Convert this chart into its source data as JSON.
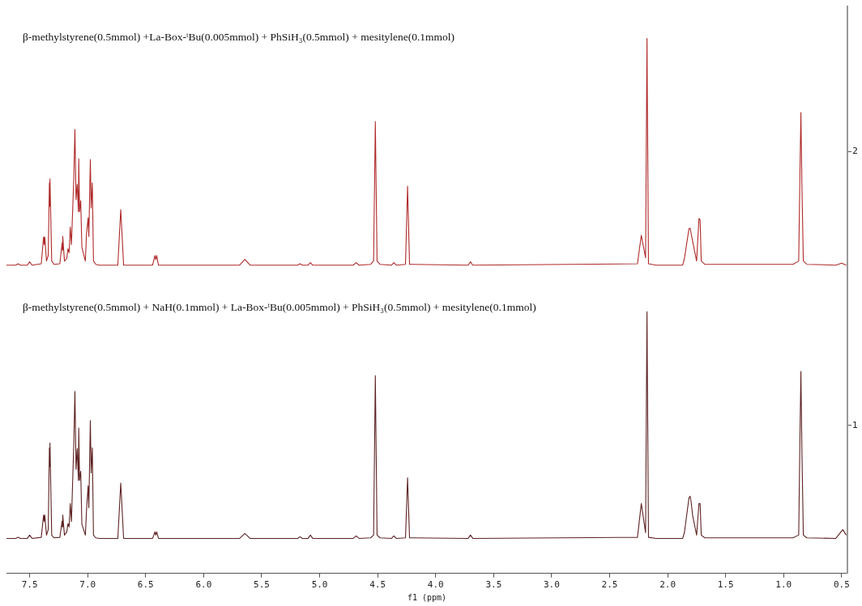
{
  "chart_data": {
    "type": "line",
    "xlabel": "f1 (ppm)",
    "annotations": [
      "β-methylstyrene(0.5mmol) +La-Box-ᵗBu(0.005mmol) + PhSiH₃(0.5mmol) + mesitylene(0.1mmol)",
      "β-methylstyrene(0.5mmol) + NaH(0.1mmol) + La-Box-ᵗBu(0.005mmol) + PhSiH₃(0.5mmol) + mesitylene(0.1mmol)"
    ],
    "xlim": [
      7.7,
      0.45
    ],
    "xticks": [
      7.5,
      {
        "value": 7,
        "label": "7.0"
      },
      6.5,
      {
        "value": 6,
        "label": "6.0"
      },
      5.5,
      {
        "value": 5,
        "label": "5.0"
      },
      4.5,
      {
        "value": 4,
        "label": "4.0"
      },
      3.5,
      {
        "value": 3,
        "label": "3.0"
      },
      2.5,
      {
        "value": 2,
        "label": "2.0"
      },
      1.5,
      {
        "value": 1,
        "label": "1.0"
      },
      0.5
    ],
    "ylim": [
      0.46,
      2.53
    ],
    "yticks": [
      1,
      2
    ],
    "marker": "none",
    "legend": false,
    "series": [
      {
        "color": "#b02a2a",
        "x": [
          7.7,
          7.62,
          7.6,
          7.58,
          7.52,
          7.5,
          7.48,
          7.4,
          7.38,
          7.375,
          7.37,
          7.355,
          7.34,
          7.33,
          7.328,
          7.325,
          7.31,
          7.29,
          7.24,
          7.22,
          7.218,
          7.215,
          7.2,
          7.18,
          7.17,
          7.16,
          7.15,
          7.14,
          7.12,
          7.11,
          7.1,
          7.09,
          7.08,
          7.077,
          7.07,
          7.06,
          7.05,
          7.02,
          7.01,
          6.996,
          6.99,
          6.977,
          6.97,
          6.96,
          6.95,
          6.93,
          6.9,
          6.74,
          6.715,
          6.69,
          6.44,
          6.42,
          6.413,
          6.405,
          6.39,
          5.69,
          5.645,
          5.6,
          5.19,
          5.17,
          5.15,
          5.1,
          5.08,
          5.06,
          4.71,
          4.685,
          4.66,
          4.56,
          4.535,
          4.52,
          4.505,
          4.48,
          4.38,
          4.36,
          4.34,
          4.26,
          4.242,
          4.225,
          3.72,
          3.7,
          3.68,
          2.26,
          2.227,
          2.19,
          2.178,
          2.165,
          2.1,
          1.87,
          1.855,
          1.816,
          1.806,
          1.797,
          1.785,
          1.75,
          1.73,
          1.72,
          1.71,
          1.68,
          0.92,
          0.87,
          0.86,
          0.851,
          0.842,
          0.83,
          0.8,
          0.55,
          0.5,
          0.46
        ],
        "values": [
          1.585,
          1.585,
          1.59,
          1.585,
          1.585,
          1.597,
          1.585,
          1.59,
          1.688,
          1.66,
          1.688,
          1.6,
          1.62,
          1.885,
          1.8,
          1.9,
          1.6,
          1.588,
          1.59,
          1.667,
          1.64,
          1.69,
          1.6,
          1.61,
          1.645,
          1.63,
          1.724,
          1.66,
          1.897,
          2.08,
          1.824,
          1.88,
          1.78,
          1.973,
          1.78,
          1.82,
          1.65,
          1.6,
          1.7,
          1.758,
          1.69,
          1.97,
          1.794,
          1.885,
          1.6,
          1.588,
          1.585,
          1.585,
          1.788,
          1.585,
          1.585,
          1.62,
          1.605,
          1.62,
          1.585,
          1.585,
          1.606,
          1.585,
          1.585,
          1.59,
          1.585,
          1.585,
          1.594,
          1.585,
          1.585,
          1.594,
          1.585,
          1.588,
          1.6,
          2.109,
          1.6,
          1.588,
          1.585,
          1.594,
          1.585,
          1.588,
          1.873,
          1.588,
          1.585,
          1.597,
          1.585,
          1.59,
          1.694,
          1.612,
          2.412,
          1.59,
          1.585,
          1.585,
          1.61,
          1.718,
          1.72,
          1.7,
          1.673,
          1.6,
          1.755,
          1.75,
          1.6,
          1.588,
          1.588,
          1.6,
          1.9,
          2.142,
          1.87,
          1.6,
          1.588,
          1.585,
          1.592,
          1.585
        ]
      },
      {
        "color": "#5e2222",
        "x": [
          7.7,
          7.62,
          7.6,
          7.58,
          7.52,
          7.5,
          7.48,
          7.4,
          7.38,
          7.375,
          7.37,
          7.355,
          7.34,
          7.33,
          7.328,
          7.325,
          7.31,
          7.29,
          7.24,
          7.22,
          7.218,
          7.215,
          7.2,
          7.18,
          7.17,
          7.16,
          7.15,
          7.14,
          7.12,
          7.11,
          7.1,
          7.09,
          7.08,
          7.077,
          7.07,
          7.06,
          7.05,
          7.02,
          7.01,
          6.996,
          6.99,
          6.977,
          6.97,
          6.96,
          6.95,
          6.93,
          6.9,
          6.74,
          6.715,
          6.69,
          6.44,
          6.42,
          6.413,
          6.405,
          6.39,
          5.69,
          5.645,
          5.6,
          5.19,
          5.17,
          5.15,
          5.1,
          5.08,
          5.06,
          4.71,
          4.685,
          4.66,
          4.56,
          4.535,
          4.52,
          4.505,
          4.48,
          4.38,
          4.36,
          4.34,
          4.26,
          4.242,
          4.225,
          3.72,
          3.7,
          3.68,
          2.26,
          2.227,
          2.19,
          2.178,
          2.165,
          2.1,
          1.87,
          1.855,
          1.816,
          1.806,
          1.797,
          1.785,
          1.75,
          1.73,
          1.72,
          1.71,
          1.68,
          0.92,
          0.87,
          0.86,
          0.851,
          0.842,
          0.83,
          0.8,
          0.55,
          0.5,
          0.49,
          0.46
        ],
        "values": [
          0.588,
          0.588,
          0.592,
          0.588,
          0.588,
          0.6,
          0.588,
          0.592,
          0.673,
          0.65,
          0.673,
          0.6,
          0.62,
          0.918,
          0.85,
          0.936,
          0.6,
          0.59,
          0.592,
          0.652,
          0.63,
          0.673,
          0.6,
          0.612,
          0.642,
          0.63,
          0.715,
          0.65,
          0.927,
          1.124,
          0.84,
          0.915,
          0.8,
          0.991,
          0.8,
          0.833,
          0.64,
          0.6,
          0.69,
          0.78,
          0.7,
          1.018,
          0.827,
          0.918,
          0.6,
          0.59,
          0.588,
          0.588,
          0.79,
          0.588,
          0.588,
          0.612,
          0.6,
          0.612,
          0.588,
          0.588,
          0.606,
          0.588,
          0.588,
          0.594,
          0.588,
          0.588,
          0.6,
          0.588,
          0.588,
          0.597,
          0.588,
          0.59,
          0.6,
          1.182,
          0.6,
          0.59,
          0.588,
          0.597,
          0.588,
          0.59,
          0.809,
          0.59,
          0.588,
          0.6,
          0.588,
          0.592,
          0.715,
          0.609,
          1.415,
          0.592,
          0.588,
          0.588,
          0.61,
          0.736,
          0.742,
          0.72,
          0.673,
          0.6,
          0.715,
          0.715,
          0.6,
          0.59,
          0.59,
          0.6,
          0.93,
          1.197,
          0.9,
          0.6,
          0.59,
          0.588,
          0.615,
          0.62,
          0.6
        ]
      }
    ]
  }
}
